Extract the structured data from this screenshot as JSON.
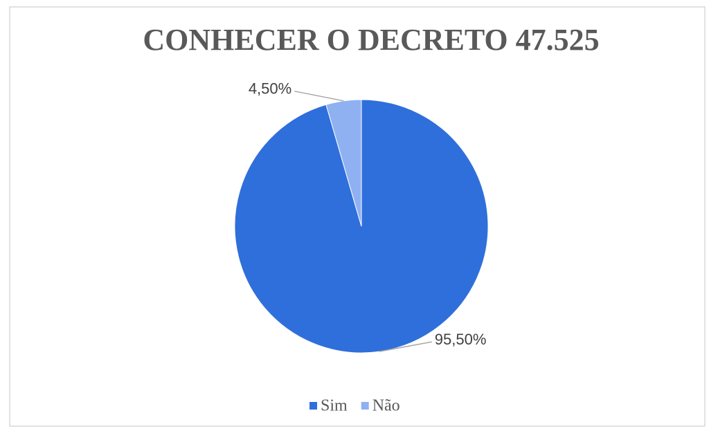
{
  "chart_data": {
    "type": "pie",
    "title": "CONHECER O DECRETO 47.525",
    "categories": [
      "Sim",
      "Não"
    ],
    "values": [
      95.5,
      4.5
    ],
    "value_labels": [
      "95,50%",
      "4,50%"
    ],
    "colors": [
      "#2f6fdb",
      "#8fb1f2"
    ]
  }
}
